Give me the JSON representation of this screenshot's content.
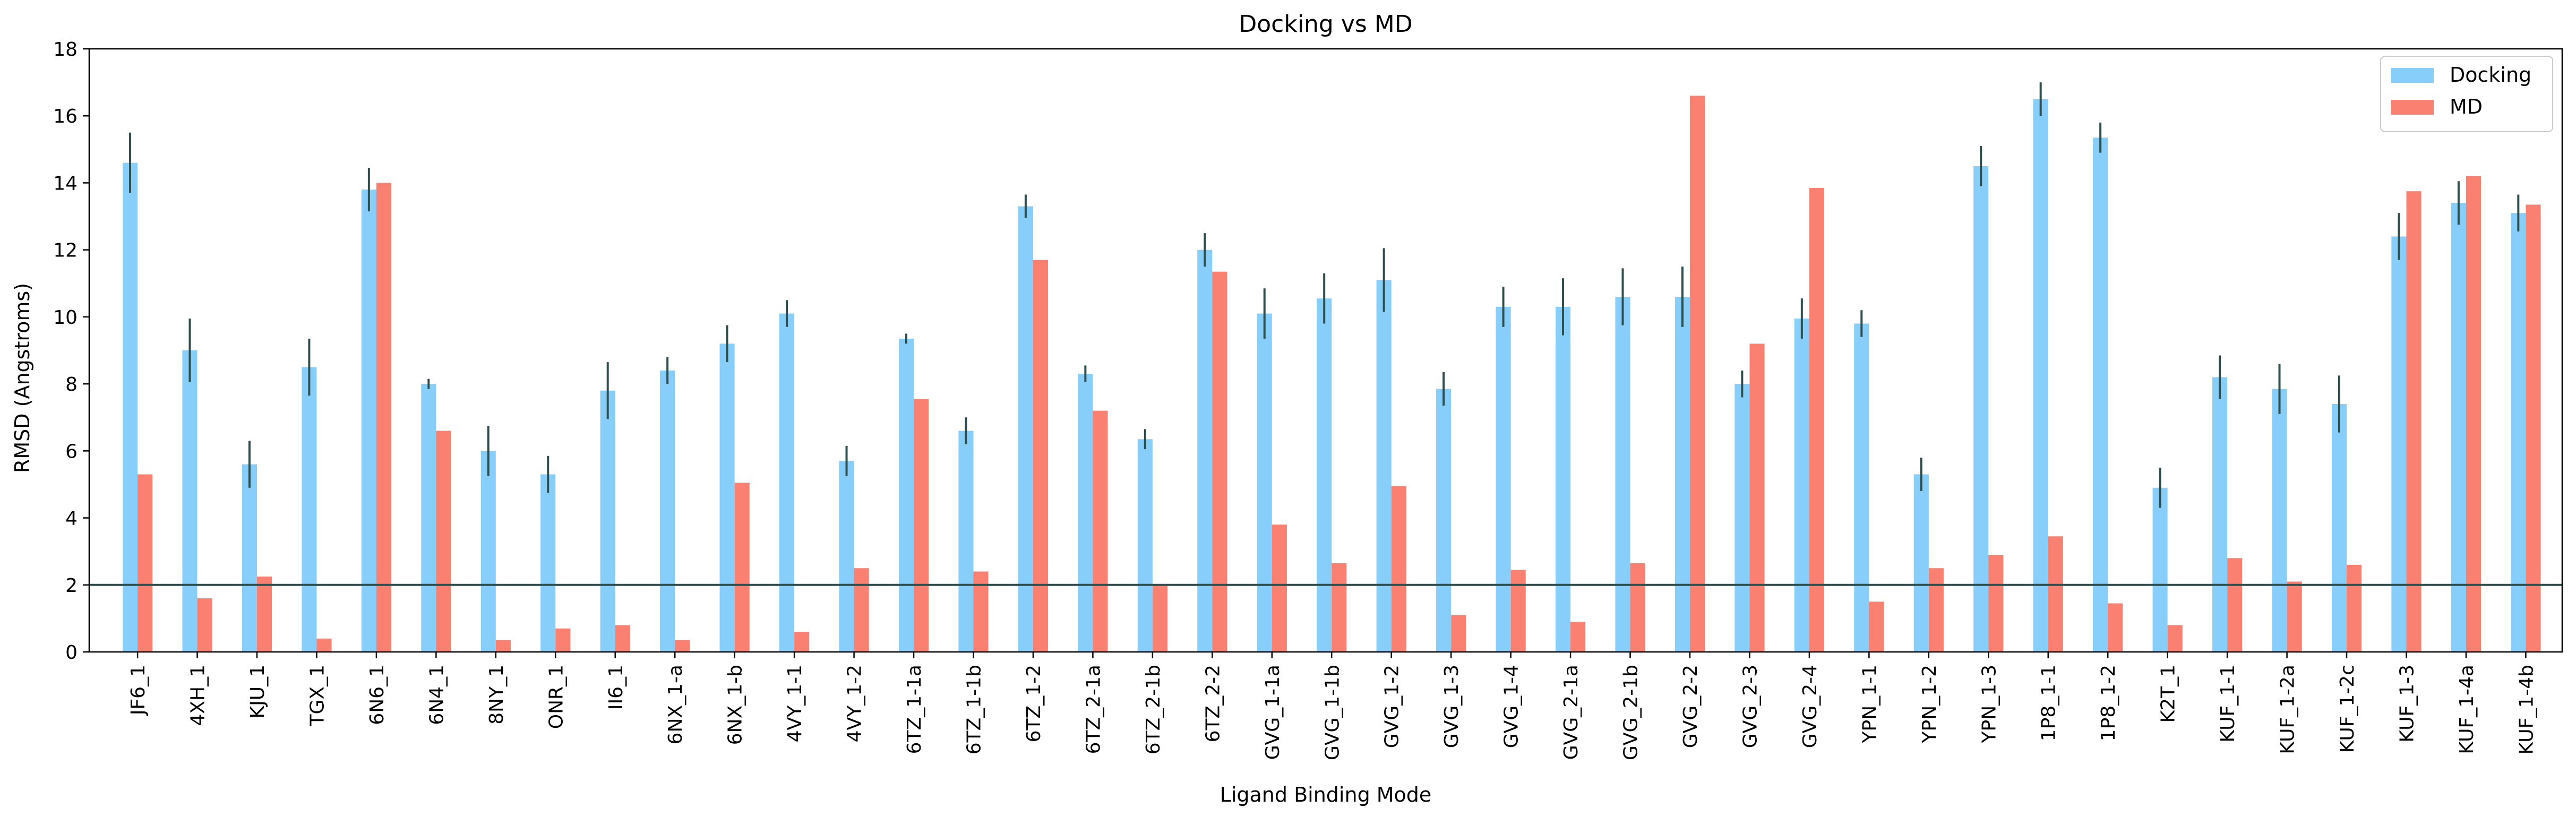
{
  "chart_data": {
    "type": "bar",
    "title": "Docking vs MD",
    "xlabel": "Ligand Binding Mode",
    "ylabel": "RMSD (Angstroms)",
    "ylim": [
      0,
      18
    ],
    "yticks": [
      0,
      2,
      4,
      6,
      8,
      10,
      12,
      14,
      16,
      18
    ],
    "grid": false,
    "legend_position": "top-right",
    "reference_line": {
      "y": 2,
      "color": "#2f4f4f"
    },
    "categories": [
      "JF6_1",
      "4XH_1",
      "KJU_1",
      "TGX_1",
      "6N6_1",
      "6N4_1",
      "8NY_1",
      "ONR_1",
      "II6_1",
      "6NX_1-a",
      "6NX_1-b",
      "4VY_1-1",
      "4VY_1-2",
      "6TZ_1-1a",
      "6TZ_1-1b",
      "6TZ_1-2",
      "6TZ_2-1a",
      "6TZ_2-1b",
      "6TZ_2-2",
      "GVG_1-1a",
      "GVG_1-1b",
      "GVG_1-2",
      "GVG_1-3",
      "GVG_1-4",
      "GVG_2-1a",
      "GVG_2-1b",
      "GVG_2-2",
      "GVG_2-3",
      "GVG_2-4",
      "YPN_1-1",
      "YPN_1-2",
      "YPN_1-3",
      "1P8_1-1",
      "1P8_1-2",
      "K2T_1",
      "KUF_1-1",
      "KUF_1-2a",
      "KUF_1-2c",
      "KUF_1-3",
      "KUF_1-4a",
      "KUF_1-4b"
    ],
    "series": [
      {
        "name": "Docking",
        "color": "#87cefa",
        "values": [
          14.6,
          9.0,
          5.6,
          8.5,
          13.8,
          8.0,
          6.0,
          5.3,
          7.8,
          8.4,
          9.2,
          10.1,
          5.7,
          9.35,
          6.6,
          13.3,
          8.3,
          6.35,
          12.0,
          10.1,
          10.55,
          11.1,
          7.85,
          10.3,
          10.3,
          10.6,
          10.6,
          8.0,
          9.95,
          9.8,
          5.3,
          14.5,
          16.5,
          15.35,
          4.9,
          8.2,
          7.85,
          7.4,
          12.4,
          13.4,
          13.1
        ],
        "errors": [
          0.9,
          0.95,
          0.7,
          0.85,
          0.65,
          0.15,
          0.75,
          0.55,
          0.85,
          0.4,
          0.55,
          0.4,
          0.45,
          0.15,
          0.4,
          0.35,
          0.25,
          0.3,
          0.5,
          0.75,
          0.75,
          0.95,
          0.5,
          0.6,
          0.85,
          0.85,
          0.9,
          0.4,
          0.6,
          0.4,
          0.5,
          0.6,
          0.5,
          0.45,
          0.6,
          0.65,
          0.75,
          0.85,
          0.7,
          0.65,
          0.55
        ]
      },
      {
        "name": "MD",
        "color": "#fa8072",
        "values": [
          5.3,
          1.6,
          2.25,
          0.4,
          14.0,
          6.6,
          0.35,
          0.7,
          0.8,
          0.35,
          5.05,
          0.6,
          2.5,
          7.55,
          2.4,
          11.7,
          7.2,
          2.0,
          11.35,
          3.8,
          2.65,
          4.95,
          1.1,
          2.45,
          0.9,
          2.65,
          16.6,
          9.2,
          13.85,
          1.5,
          2.5,
          2.9,
          3.45,
          1.45,
          0.8,
          2.8,
          2.1,
          2.6,
          13.75,
          14.2,
          13.35
        ]
      }
    ]
  }
}
